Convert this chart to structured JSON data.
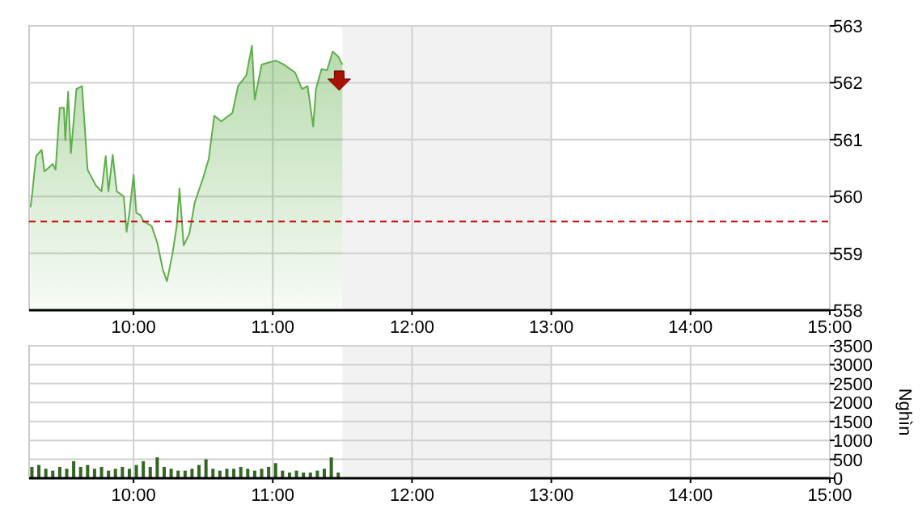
{
  "chart_data": [
    {
      "type": "area",
      "x": [
        9.26,
        9.27,
        9.3,
        9.34,
        9.36,
        9.42,
        9.44,
        9.47,
        9.5,
        9.51,
        9.53,
        9.55,
        9.59,
        9.63,
        9.67,
        9.73,
        9.77,
        9.8,
        9.82,
        9.85,
        9.88,
        9.93,
        9.95,
        9.97,
        10.0,
        10.02,
        10.05,
        10.07,
        10.13,
        10.17,
        10.21,
        10.24,
        10.28,
        10.31,
        10.33,
        10.36,
        10.4,
        10.44,
        10.5,
        10.54,
        10.58,
        10.63,
        10.71,
        10.75,
        10.81,
        10.85,
        10.87,
        10.92,
        11.02,
        11.08,
        11.16,
        11.21,
        11.25,
        11.29,
        11.31,
        11.35,
        11.39,
        11.43,
        11.47,
        11.5
      ],
      "series": [
        {
          "color": "#5fae4a",
          "values": [
            559.81,
            560.0,
            560.71,
            560.82,
            560.44,
            560.57,
            560.47,
            561.56,
            561.56,
            560.99,
            561.84,
            560.76,
            561.89,
            561.94,
            560.47,
            560.19,
            560.09,
            560.71,
            560.09,
            560.73,
            560.09,
            560.0,
            559.38,
            559.71,
            560.38,
            559.71,
            559.67,
            559.57,
            559.48,
            559.19,
            558.72,
            558.51,
            559.0,
            559.48,
            560.14,
            559.14,
            559.34,
            559.9,
            560.33,
            560.66,
            561.42,
            561.32,
            561.47,
            561.94,
            562.13,
            562.65,
            561.7,
            562.32,
            562.39,
            562.32,
            562.18,
            561.89,
            561.94,
            561.23,
            561.89,
            562.24,
            562.22,
            562.55,
            562.46,
            562.32
          ]
        }
      ],
      "xlim": [
        9.25,
        15
      ],
      "xticks": [
        {
          "value": 10,
          "label": "10:00"
        },
        {
          "value": 11,
          "label": "11:00"
        },
        {
          "value": 12,
          "label": "12:00"
        },
        {
          "value": 13,
          "label": "13:00"
        },
        {
          "value": 14,
          "label": "14:00"
        },
        {
          "value": 15,
          "label": "15:00"
        }
      ],
      "ylim": [
        558,
        563
      ],
      "yticks": [
        558,
        559,
        560,
        561,
        562,
        563
      ],
      "grid": true,
      "ref_lines": [
        {
          "axis": "y",
          "value": 559.56,
          "color": "#cc0000",
          "line_style": "dashed"
        }
      ],
      "bands": [
        {
          "axis": "x",
          "from": 11.5,
          "to": 13,
          "color": "#f2f2f2"
        }
      ]
    },
    {
      "type": "bar",
      "x": [
        9.27,
        9.32,
        9.37,
        9.42,
        9.47,
        9.52,
        9.57,
        9.62,
        9.67,
        9.72,
        9.77,
        9.82,
        9.87,
        9.92,
        9.97,
        10.02,
        10.07,
        10.12,
        10.17,
        10.22,
        10.27,
        10.32,
        10.37,
        10.42,
        10.47,
        10.52,
        10.57,
        10.62,
        10.67,
        10.72,
        10.77,
        10.82,
        10.87,
        10.92,
        10.97,
        11.02,
        11.07,
        11.12,
        11.17,
        11.22,
        11.27,
        11.32,
        11.37,
        11.42,
        11.47
      ],
      "series": [
        {
          "color": "#336622",
          "values": [
            300,
            350,
            250,
            200,
            300,
            250,
            450,
            300,
            350,
            250,
            300,
            200,
            250,
            300,
            250,
            350,
            450,
            300,
            550,
            300,
            250,
            200,
            200,
            250,
            350,
            500,
            250,
            200,
            250,
            250,
            300,
            250,
            200,
            250,
            300,
            400,
            200,
            150,
            200,
            150,
            150,
            200,
            250,
            550,
            150
          ]
        }
      ],
      "xlim": [
        9.25,
        15
      ],
      "xticks": [
        {
          "value": 10,
          "label": "10:00"
        },
        {
          "value": 11,
          "label": "11:00"
        },
        {
          "value": 12,
          "label": "12:00"
        },
        {
          "value": 13,
          "label": "13:00"
        },
        {
          "value": 14,
          "label": "14:00"
        },
        {
          "value": 15,
          "label": "15:00"
        }
      ],
      "ylim": [
        0,
        3500
      ],
      "yticks": [
        0,
        500,
        1000,
        1500,
        2000,
        2500,
        3000,
        3500
      ],
      "grid": true,
      "ylabel": "Nghìn",
      "bands": [
        {
          "axis": "x",
          "from": 11.5,
          "to": 13,
          "color": "#f2f2f2"
        }
      ]
    }
  ]
}
